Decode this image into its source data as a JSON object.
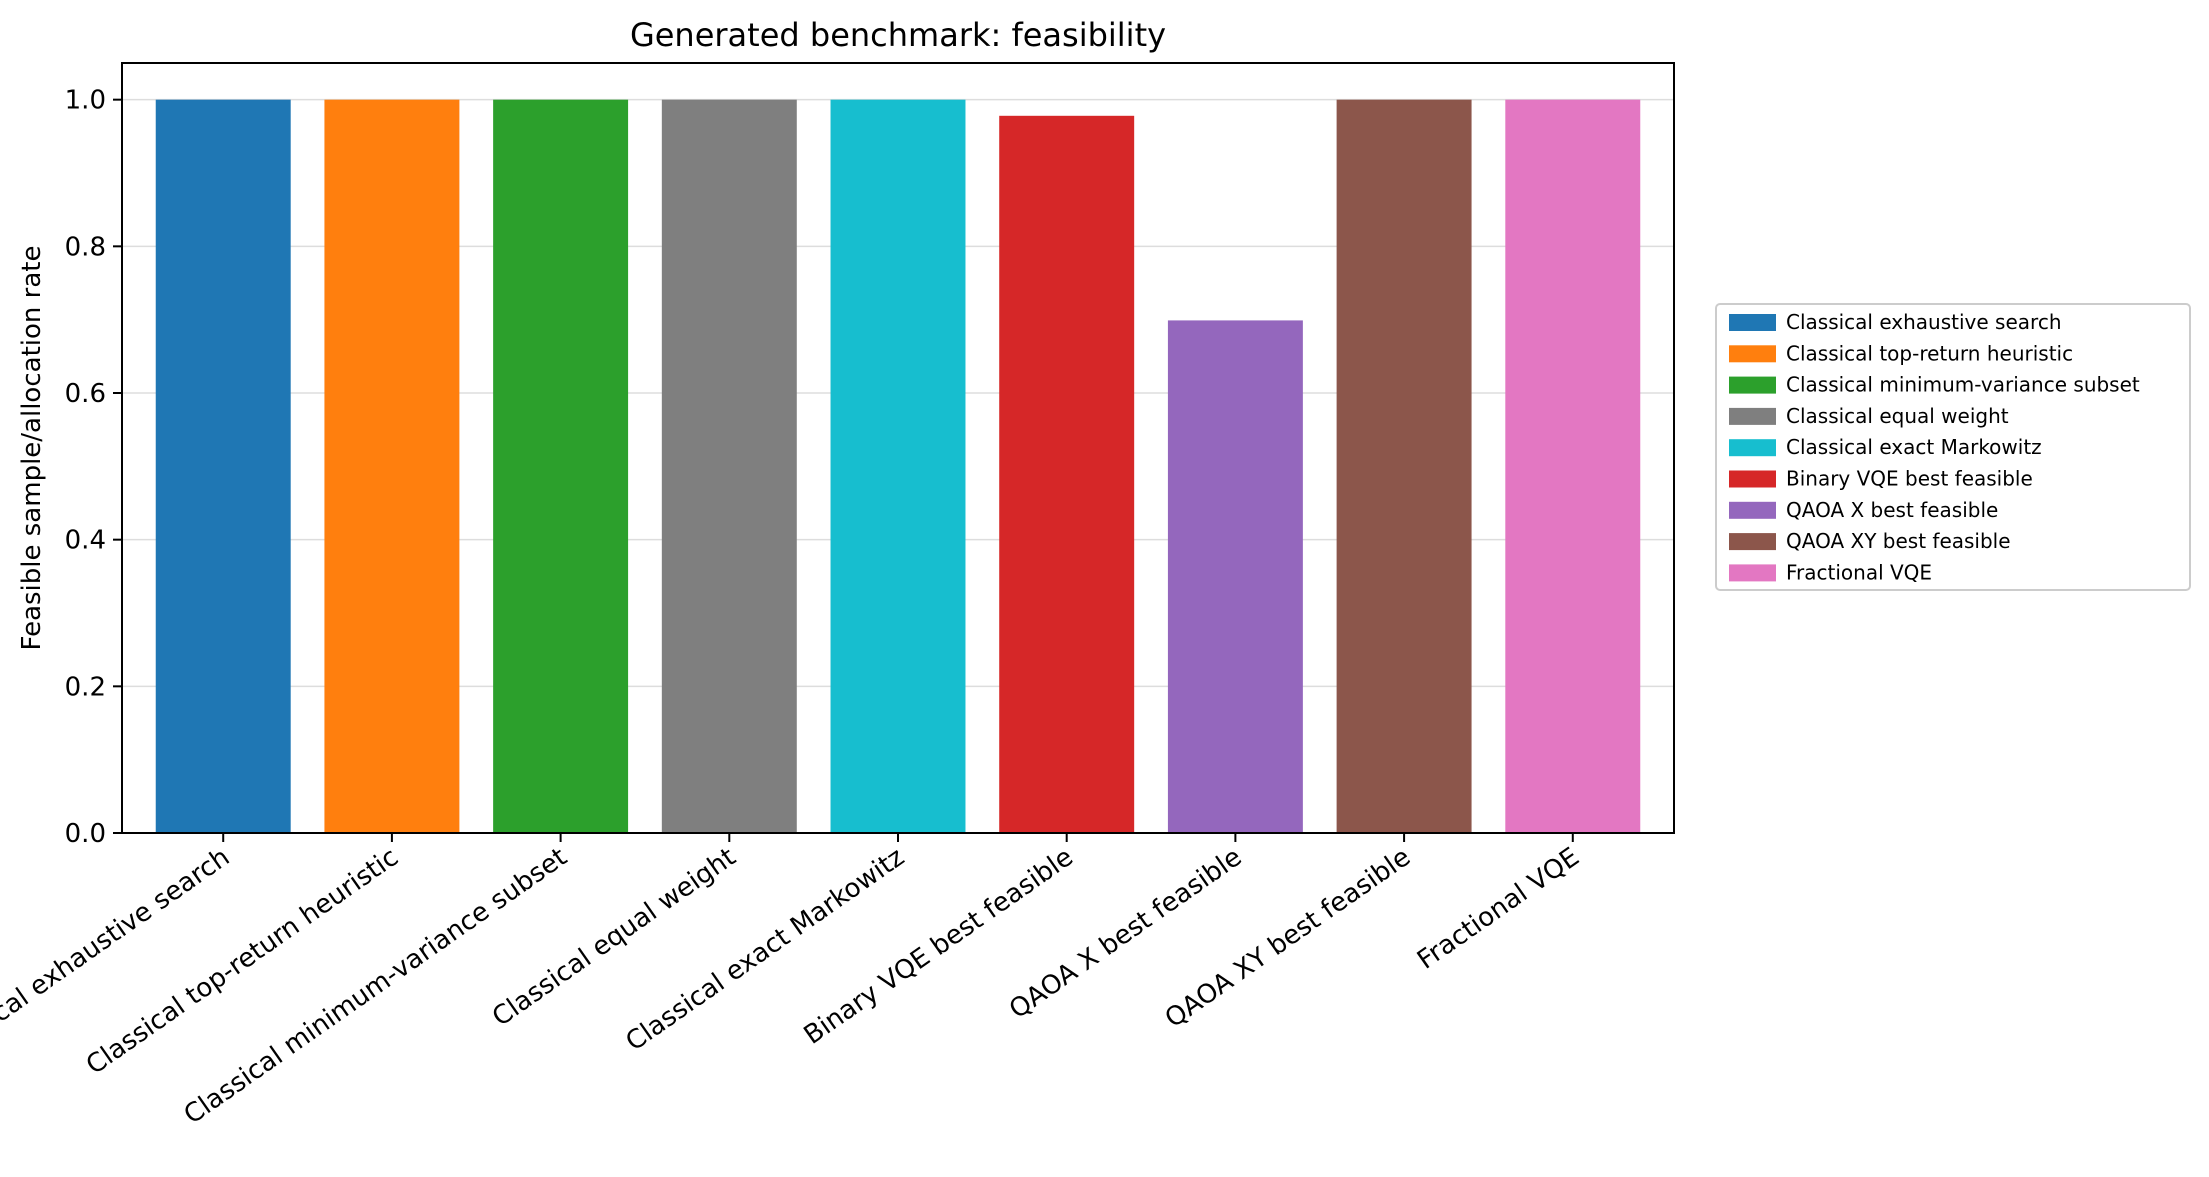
{
  "chart_data": {
    "type": "bar",
    "title": "Generated benchmark: feasibility",
    "xlabel": "",
    "ylabel": "Feasible sample/allocation rate",
    "ylim": [
      0,
      1.05
    ],
    "yticks": [
      "0.0",
      "0.2",
      "0.4",
      "0.6",
      "0.8",
      "1.0"
    ],
    "ytick_values": [
      0.0,
      0.2,
      0.4,
      0.6,
      0.8,
      1.0
    ],
    "grid": "horizontal",
    "legend_position": "right, outside plot",
    "categories": [
      "Classical exhaustive search",
      "Classical top-return heuristic",
      "Classical minimum-variance subset",
      "Classical equal weight",
      "Classical exact Markowitz",
      "Binary VQE best feasible",
      "QAOA X best feasible",
      "QAOA XY best feasible",
      "Fractional VQE"
    ],
    "values": [
      1.0,
      1.0,
      1.0,
      1.0,
      1.0,
      0.978,
      0.699,
      1.0,
      1.0
    ],
    "colors": [
      "#1f77b4",
      "#ff7f0e",
      "#2ca02c",
      "#7f7f7f",
      "#17becf",
      "#d62728",
      "#9467bd",
      "#8c564b",
      "#e377c2"
    ],
    "legend": [
      "Classical exhaustive search",
      "Classical top-return heuristic",
      "Classical minimum-variance subset",
      "Classical equal weight",
      "Classical exact Markowitz",
      "Binary VQE best feasible",
      "QAOA X best feasible",
      "QAOA XY best feasible",
      "Fractional VQE"
    ]
  }
}
